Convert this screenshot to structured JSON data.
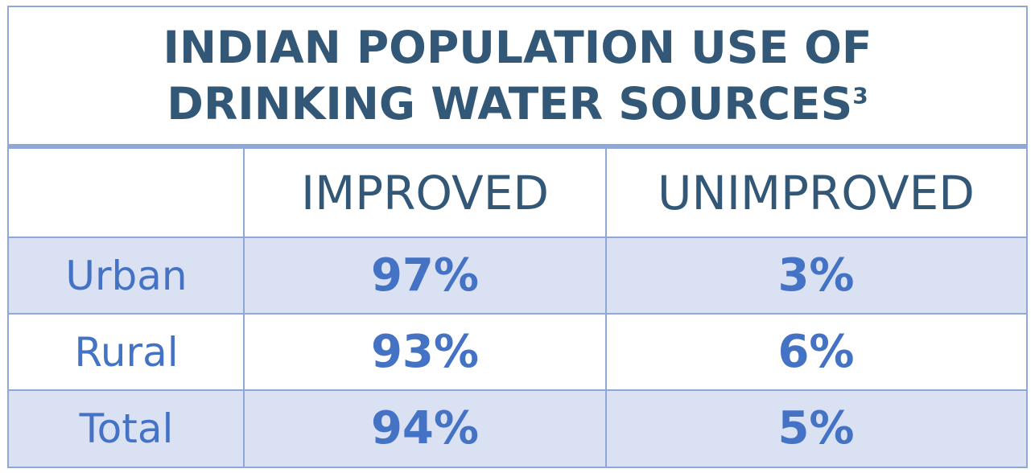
{
  "title": "INDIAN POPULATION USE OF DRINKING WATER SOURCES",
  "title_superscript": "3",
  "colors": {
    "title": "#335877",
    "accent_blue": "#4472c4",
    "border": "#8ea9d8",
    "band": "#d9e1f2"
  },
  "chart_data": {
    "type": "table",
    "title": "INDIAN POPULATION USE OF DRINKING WATER SOURCES",
    "columns": [
      "",
      "IMPROVED",
      "UNIMPROVED"
    ],
    "rows": [
      {
        "label": "Urban",
        "improved": "97%",
        "unimproved": "3%"
      },
      {
        "label": "Rural",
        "improved": "93%",
        "unimproved": "6%"
      },
      {
        "label": "Total",
        "improved": "94%",
        "unimproved": "5%"
      }
    ],
    "values": {
      "improved": [
        97,
        93,
        94
      ],
      "unimproved": [
        3,
        6,
        5
      ]
    }
  }
}
